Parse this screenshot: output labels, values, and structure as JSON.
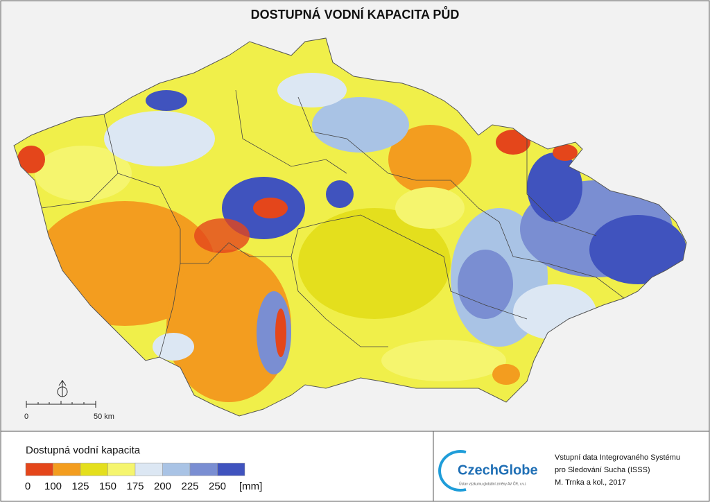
{
  "title": "DOSTUPNÁ VODNÍ KAPACITA PŮD",
  "scale_bar": {
    "start": 0,
    "end": "50 km"
  },
  "legend": {
    "title": "Dostupná vodní kapacita",
    "ticks": [
      0,
      100,
      125,
      150,
      175,
      200,
      225,
      250
    ],
    "unit": "[mm]",
    "colors": [
      "#e4461b",
      "#f39d1f",
      "#e4df1d",
      "#f5f56e",
      "#dce7f3",
      "#a9c3e5",
      "#7a8ed2",
      "#4053be"
    ]
  },
  "logo": {
    "name": "CzechGlobe",
    "subtitle": "Ústav výzkumu globální změny AV ČR, v.v.i."
  },
  "credits": [
    "Vstupní data Integrovaného Systému",
    "pro Sledování Sucha (ISSS)",
    "M. Trnka a kol., 2017"
  ]
}
